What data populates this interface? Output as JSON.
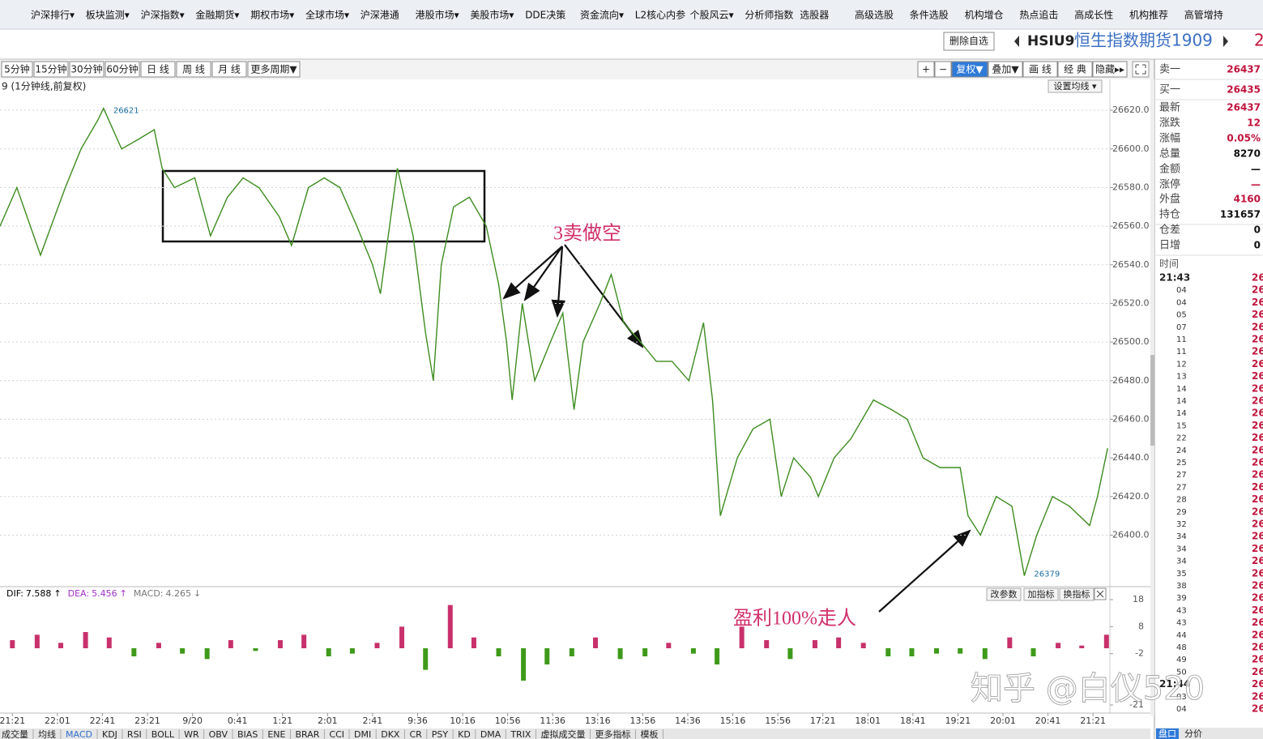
{
  "menu": [
    "沪深排行▾",
    "板块监测▾",
    "沪深指数▾",
    "金融期货▾",
    "期权市场▾",
    "全球市场▾",
    "沪深港通",
    "港股市场▾",
    "美股市场▾",
    "DDE决策",
    "资金流向▾",
    "L2核心内参",
    "个股风云▾",
    "分析师指数",
    "选股器",
    "高级选股",
    "条件选股",
    "机构增仓",
    "热点追击",
    "高成长性",
    "机构推荐",
    "高管增持"
  ],
  "header": {
    "button": "删除自选",
    "symbol": "HSIU9",
    "name": "恒生指数期货1909",
    "extra": "2"
  },
  "toolbar": {
    "periods": [
      "5分钟",
      "15分钟",
      "30分钟",
      "60分钟",
      "日 线",
      "周 线",
      "月 线",
      "更多周期▼"
    ],
    "tools": [
      "+",
      "−",
      "复权▼",
      "叠加▼",
      "画 线",
      "经 典",
      "隐藏▸▸"
    ]
  },
  "chart_data": {
    "type": "line",
    "subtitle": "9 (1分钟线,前复权)",
    "ma_button": "设置均线 ▾",
    "xlim": [
      -11,
      975
    ],
    "xticks": [
      {
        "value": 0,
        "label": "21:21"
      },
      {
        "value": 40,
        "label": "22:01"
      },
      {
        "value": 80,
        "label": "22:41"
      },
      {
        "value": 120,
        "label": "23:21"
      },
      {
        "value": 160,
        "label": "9/20"
      },
      {
        "value": 200,
        "label": "0:41"
      },
      {
        "value": 240,
        "label": "1:21"
      },
      {
        "value": 280,
        "label": "2:01"
      },
      {
        "value": 320,
        "label": "2:41"
      },
      {
        "value": 360,
        "label": "9:36"
      },
      {
        "value": 400,
        "label": "10:16"
      },
      {
        "value": 440,
        "label": "10:56"
      },
      {
        "value": 480,
        "label": "11:36"
      },
      {
        "value": 520,
        "label": "13:16"
      },
      {
        "value": 560,
        "label": "13:56"
      },
      {
        "value": 600,
        "label": "14:36"
      },
      {
        "value": 640,
        "label": "15:16"
      },
      {
        "value": 680,
        "label": "15:56"
      },
      {
        "value": 720,
        "label": "17:21"
      },
      {
        "value": 760,
        "label": "18:01"
      },
      {
        "value": 800,
        "label": "18:41"
      },
      {
        "value": 840,
        "label": "19:21"
      },
      {
        "value": 880,
        "label": "20:01"
      },
      {
        "value": 920,
        "label": "20:41"
      },
      {
        "value": 960,
        "label": "21:21"
      }
    ],
    "ylim": [
      26375,
      26636
    ],
    "yticks": [
      {
        "value": 26620,
        "label": "26620.0"
      },
      {
        "value": 26600,
        "label": "26600.0"
      },
      {
        "value": 26580,
        "label": "26580.0"
      },
      {
        "value": 26560,
        "label": "26560.0"
      },
      {
        "value": 26540,
        "label": "26540.0"
      },
      {
        "value": 26520,
        "label": "26520.0"
      },
      {
        "value": 26500,
        "label": "26500.0"
      },
      {
        "value": 26480,
        "label": "26480.0"
      },
      {
        "value": 26460,
        "label": "26460.0"
      },
      {
        "value": 26440,
        "label": "26440.0"
      },
      {
        "value": 26420,
        "label": "26420.0"
      },
      {
        "value": 26400,
        "label": "26400.0"
      }
    ],
    "grid": true,
    "color": "#3d8c1f",
    "x": [
      -11,
      4,
      25,
      47,
      61,
      76,
      81,
      97,
      112,
      126,
      133,
      144,
      162,
      176,
      191,
      205,
      219,
      237,
      248,
      263,
      277,
      291,
      306,
      320,
      327,
      342,
      356,
      367,
      374,
      381,
      392,
      406,
      421,
      432,
      439,
      444,
      453,
      464,
      478,
      489,
      499,
      507,
      522,
      532,
      543,
      558,
      572,
      586,
      601,
      614,
      622,
      629,
      644,
      658,
      673,
      683,
      694,
      709,
      716,
      730,
      745,
      765,
      781,
      795,
      809,
      824,
      842,
      849,
      860,
      874,
      888,
      899,
      910,
      924,
      939,
      957,
      964,
      973
    ],
    "values": [
      26560,
      26580,
      26545,
      26580,
      26600,
      26615,
      26621,
      26600,
      26605,
      26610,
      26590,
      26580,
      26585,
      26555,
      26575,
      26585,
      26580,
      26565,
      26550,
      26580,
      26585,
      26580,
      26560,
      26540,
      26525,
      26590,
      26555,
      26505,
      26480,
      26540,
      26570,
      26575,
      26560,
      26530,
      26500,
      26470,
      26520,
      26480,
      26500,
      26515,
      26465,
      26500,
      26520,
      26535,
      26510,
      26500,
      26490,
      26490,
      26480,
      26510,
      26470,
      26410,
      26440,
      26455,
      26460,
      26420,
      26440,
      26430,
      26420,
      26440,
      26450,
      26470,
      26465,
      26460,
      26440,
      26435,
      26435,
      26410,
      26400,
      26420,
      26415,
      26379,
      26400,
      26420,
      26415,
      26405,
      26420,
      26445
    ],
    "high": 26621,
    "low": 26379,
    "annotations": [
      "3卖做空",
      "盈利100%走人"
    ]
  },
  "macd": {
    "type": "bar",
    "legend": [
      {
        "name": "DIF:",
        "value": 7.588,
        "arrow": "↑",
        "color": "#000000"
      },
      {
        "name": "DEA:",
        "value": 5.456,
        "arrow": "↑",
        "color": "#a030c8"
      },
      {
        "name": "MACD:",
        "value": 4.265,
        "arrow": "↓",
        "color": "#777777"
      }
    ],
    "buttons": [
      "改参数",
      "加指标",
      "换指标"
    ],
    "x": [
      0,
      22,
      43,
      65,
      86,
      108,
      130,
      151,
      173,
      194,
      216,
      238,
      259,
      281,
      302,
      324,
      346,
      367,
      389,
      410,
      432,
      454,
      475,
      497,
      518,
      540,
      562,
      583,
      605,
      626,
      648,
      670,
      691,
      713,
      734,
      756,
      778,
      799,
      821,
      842,
      864,
      886,
      907,
      929,
      950,
      972
    ],
    "values": [
      3,
      5,
      2,
      6,
      4,
      -3,
      2,
      -2,
      -4,
      3,
      -1,
      3,
      5,
      -3,
      -2,
      2,
      8,
      -8,
      16,
      4,
      -3,
      -12,
      -6,
      -3,
      4,
      -4,
      -3,
      2,
      -2,
      -6,
      8,
      3,
      -4,
      3,
      4,
      2,
      -3,
      -3,
      -2,
      -2,
      -4,
      4,
      -3,
      2,
      1,
      5
    ],
    "ylim": [
      -24,
      21
    ],
    "yticks": [
      18,
      8,
      -2,
      -21
    ],
    "up_color": "#c8316b",
    "down_color": "#3f9a1a"
  },
  "indicator_tabs": [
    "成交量",
    "均线",
    "MACD",
    "KDJ",
    "RSI",
    "BOLL",
    "WR",
    "OBV",
    "BIAS",
    "ENE",
    "BRAR",
    "CCI",
    "DMI",
    "DKX",
    "CR",
    "PSY",
    "KD",
    "DMA",
    "TRIX",
    "虚拟成交量",
    "更多指标",
    "模板"
  ],
  "quote": {
    "rows": [
      {
        "label": "卖一",
        "value": 26437,
        "color": "#c0143c"
      },
      {
        "label": "买一",
        "value": 26435,
        "color": "#c0143c"
      },
      {
        "label": "最新",
        "value": 26437,
        "color": "#c0143c"
      },
      {
        "label": "涨跌",
        "value": 12,
        "color": "#c0143c"
      },
      {
        "label": "涨幅",
        "value": {
          "value": 0.05,
          "label": "0.05%"
        },
        "color": "#c0143c"
      },
      {
        "label": "总量",
        "value": 8270,
        "color": "#111111"
      },
      {
        "label": "金额",
        "value": "—",
        "color": "#111111"
      },
      {
        "label": "涨停",
        "value": "—",
        "color": "#c0143c"
      },
      {
        "label": "外盘",
        "value": 4160,
        "color": "#c0143c"
      },
      {
        "label": "持仓",
        "value": 131657,
        "color": "#111111"
      },
      {
        "label": "仓差",
        "value": 0,
        "color": "#111111"
      },
      {
        "label": "日增",
        "value": 0,
        "color": "#111111"
      }
    ]
  },
  "trades": {
    "header": "时间",
    "rows": [
      "21:43",
      "04",
      "04",
      "05",
      "07",
      "11",
      "11",
      "12",
      "13",
      "14",
      "14",
      "14",
      "15",
      "22",
      "24",
      "25",
      "27",
      "27",
      "28",
      "29",
      "32",
      "34",
      "34",
      "34",
      "35",
      "38",
      "39",
      "43",
      "43",
      "44",
      "48",
      "49",
      "50",
      "21:44",
      "03",
      "04"
    ],
    "price": "26"
  },
  "side_tabs": [
    "盘口",
    "分价"
  ],
  "watermark": "知乎 @白仪520"
}
